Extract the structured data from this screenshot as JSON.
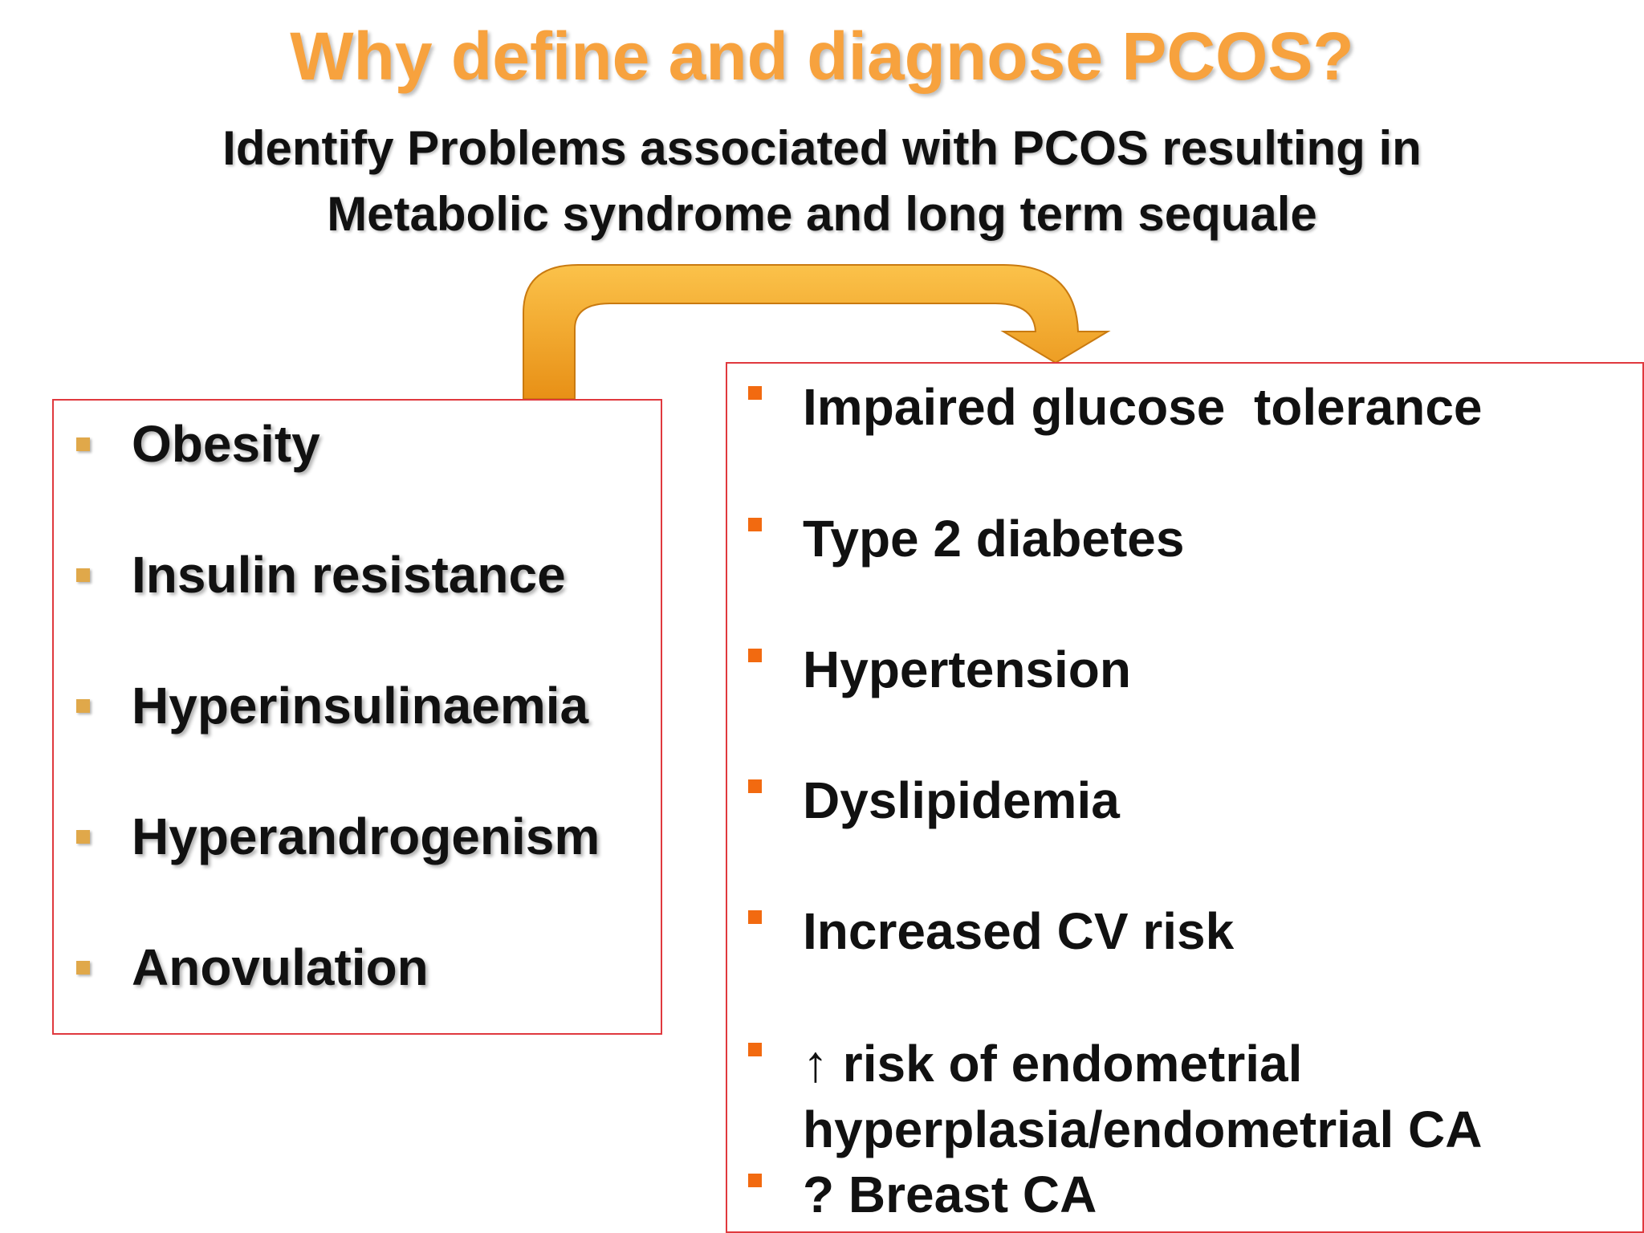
{
  "header": {
    "title": "Why define and diagnose PCOS?",
    "subtitle": [
      "Identify Problems associated with PCOS resulting in",
      "Metabolic syndrome and long term sequale"
    ]
  },
  "left_items": [
    "Obesity",
    "Insulin resistance",
    "Hyperinsulinaemia",
    "Hyperandrogenism",
    "Anovulation"
  ],
  "right_items": [
    {
      "lines": [
        "Impaired glucose  tolerance"
      ]
    },
    {
      "lines": [
        "Type 2 diabetes"
      ]
    },
    {
      "lines": [
        "Hypertension"
      ]
    },
    {
      "lines": [
        "Dyslipidemia"
      ]
    },
    {
      "lines": [
        "Increased CV risk"
      ]
    },
    {
      "lines": [
        "↑ risk of endometrial",
        "hyperplasia/endometrial CA"
      ]
    },
    {
      "lines": [
        "? Breast CA"
      ]
    }
  ]
}
